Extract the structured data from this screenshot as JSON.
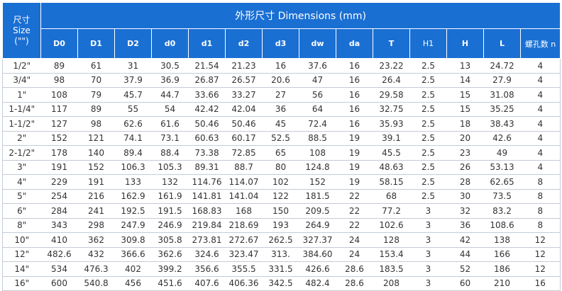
{
  "table": {
    "size_header": {
      "line1": "尺寸",
      "line2": "Size",
      "line3": "(\"\")"
    },
    "title": "外形尺寸 Dimensions (mm)",
    "columns": [
      "D0",
      "D1",
      "D2",
      "d0",
      "d1",
      "d2",
      "d3",
      "dw",
      "da",
      "T",
      "H1",
      "H",
      "L",
      "螺孔数 n"
    ],
    "rows": [
      [
        "1/2\"",
        "89",
        "61",
        "31",
        "30.5",
        "21.54",
        "21.23",
        "16",
        "37.6",
        "16",
        "23.22",
        "2.5",
        "13",
        "24.72",
        "4"
      ],
      [
        "3/4\"",
        "98",
        "70",
        "37.9",
        "36.9",
        "26.87",
        "26.57",
        "20.6",
        "47",
        "16",
        "26.4",
        "2.5",
        "14",
        "27.9",
        "4"
      ],
      [
        "1\"",
        "108",
        "79",
        "45.7",
        "44.7",
        "33.66",
        "33.27",
        "27",
        "56",
        "16",
        "29.58",
        "2.5",
        "15",
        "31.08",
        "4"
      ],
      [
        "1-1/4\"",
        "117",
        "89",
        "55",
        "54",
        "42.42",
        "42.04",
        "36",
        "64",
        "16",
        "32.75",
        "2.5",
        "15",
        "35.25",
        "4"
      ],
      [
        "1-1/2\"",
        "127",
        "98",
        "62.6",
        "61.6",
        "50.46",
        "50.46",
        "45",
        "72.4",
        "16",
        "35.93",
        "2.5",
        "18",
        "38.43",
        "4"
      ],
      [
        "2\"",
        "152",
        "121",
        "74.1",
        "73.1",
        "60.63",
        "60.17",
        "52.5",
        "88.5",
        "19",
        "39.1",
        "2.5",
        "20",
        "42.6",
        "4"
      ],
      [
        "2-1/2\"",
        "178",
        "140",
        "89.4",
        "88.4",
        "73.38",
        "72.85",
        "65",
        "108",
        "19",
        "45.5",
        "2.5",
        "23",
        "49",
        "4"
      ],
      [
        "3\"",
        "191",
        "152",
        "106.3",
        "105.3",
        "89.31",
        "88.7",
        "80",
        "124.8",
        "19",
        "48.63",
        "2.5",
        "26",
        "53.13",
        "4"
      ],
      [
        "4\"",
        "229",
        "191",
        "133",
        "132",
        "114.76",
        "114.07",
        "102",
        "152",
        "19",
        "58.15",
        "2.5",
        "28",
        "62.65",
        "8"
      ],
      [
        "5\"",
        "254",
        "216",
        "162.9",
        "161.9",
        "141.81",
        "141.04",
        "122",
        "181.5",
        "22",
        "68",
        "2.5",
        "30",
        "73.5",
        "8"
      ],
      [
        "6\"",
        "284",
        "241",
        "192.5",
        "191.5",
        "168.83",
        "168",
        "150",
        "209.5",
        "22",
        "77.2",
        "3",
        "32",
        "83.2",
        "8"
      ],
      [
        "8\"",
        "343",
        "298",
        "247.9",
        "246.9",
        "219.84",
        "218.69",
        "193",
        "264.9",
        "22",
        "102.6",
        "3",
        "36",
        "108.6",
        "8"
      ],
      [
        "10\"",
        "410",
        "362",
        "309.8",
        "305.8",
        "273.81",
        "272.67",
        "262.5",
        "327.37",
        "24",
        "128",
        "3",
        "42",
        "138",
        "12"
      ],
      [
        "12\"",
        "482.6",
        "432",
        "366.6",
        "362.6",
        "324.6",
        "323.47",
        "313.",
        "384.60",
        "24",
        "153.4",
        "3",
        "44",
        "166",
        "12"
      ],
      [
        "14\"",
        "534",
        "476.3",
        "402",
        "399.2",
        "356.6",
        "355.5",
        "331.5",
        "426.6",
        "28.6",
        "183.5",
        "3",
        "52",
        "186",
        "12"
      ],
      [
        "16\"",
        "600",
        "540.8",
        "456",
        "451.6",
        "407.6",
        "406.36",
        "342.5",
        "482.4",
        "28.6",
        "208",
        "3",
        "60",
        "210",
        "16"
      ]
    ]
  },
  "colors": {
    "header_bg": "#1a6fd3",
    "header_text": "#ffffff",
    "body_text": "#333333",
    "grid": "#c4ccd6"
  }
}
